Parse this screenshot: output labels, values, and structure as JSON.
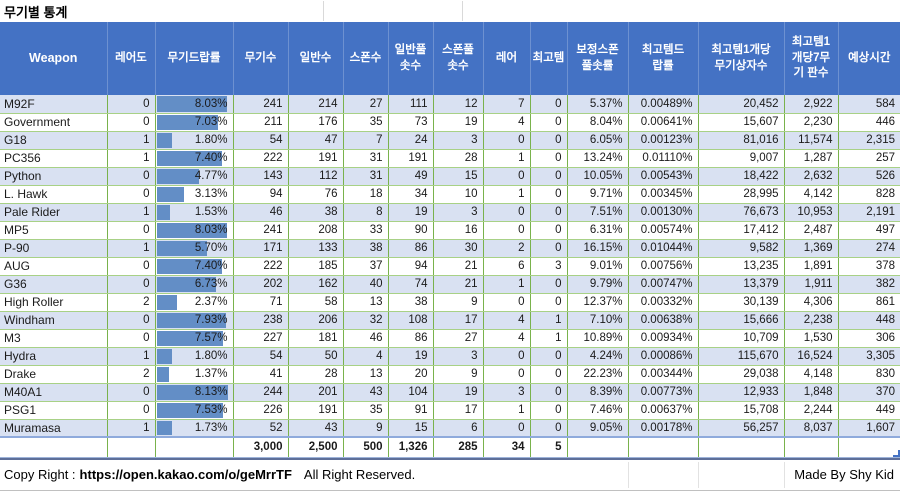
{
  "title": "무기별 통계",
  "colors": {
    "header_bg": "#4472C4",
    "band_row_bg": "#D9E1F2",
    "grid_green": "#79b24c",
    "data_bar_blue": "#638EC6",
    "totals_border_blue": "#8FAADC"
  },
  "table": {
    "headers": [
      "Weapon",
      "레어도",
      "무기드랍률",
      "무기수",
      "일반수",
      "스폰수",
      "일반풀\n솟수",
      "스폰풀\n솟수",
      "레어",
      "최고템",
      "보정스폰\n풀솟률",
      "최고템드\n랍률",
      "최고템1개당\n무기상자수",
      "최고템1\n개당7무\n기 판수",
      "예상시간"
    ],
    "column_keys": [
      "weapon",
      "rarity",
      "drop-rate",
      "weapon-count",
      "normal-count",
      "spawn-count",
      "normal-pool-count",
      "spawn-pool-count",
      "rare-count",
      "top-item-count",
      "adjusted-spawn-pool-rate",
      "top-item-drop-rate",
      "boxes-per-top-item",
      "runs-per-top-item",
      "expected-time"
    ],
    "drop_rate_bar_max": 8.13,
    "rows": [
      [
        "M92F",
        "0",
        "8.03%",
        "241",
        "214",
        "27",
        "111",
        "12",
        "7",
        "0",
        "5.37%",
        "0.00489%",
        "20,452",
        "2,922",
        "584"
      ],
      [
        "Government",
        "0",
        "7.03%",
        "211",
        "176",
        "35",
        "73",
        "19",
        "4",
        "0",
        "8.04%",
        "0.00641%",
        "15,607",
        "2,230",
        "446"
      ],
      [
        "G18",
        "1",
        "1.80%",
        "54",
        "47",
        "7",
        "24",
        "3",
        "0",
        "0",
        "6.05%",
        "0.00123%",
        "81,016",
        "11,574",
        "2,315"
      ],
      [
        "PC356",
        "1",
        "7.40%",
        "222",
        "191",
        "31",
        "191",
        "28",
        "1",
        "0",
        "13.24%",
        "0.01110%",
        "9,007",
        "1,287",
        "257"
      ],
      [
        "Python",
        "0",
        "4.77%",
        "143",
        "112",
        "31",
        "49",
        "15",
        "0",
        "0",
        "10.05%",
        "0.00543%",
        "18,422",
        "2,632",
        "526"
      ],
      [
        "L. Hawk",
        "0",
        "3.13%",
        "94",
        "76",
        "18",
        "34",
        "10",
        "1",
        "0",
        "9.71%",
        "0.00345%",
        "28,995",
        "4,142",
        "828"
      ],
      [
        "Pale Rider",
        "1",
        "1.53%",
        "46",
        "38",
        "8",
        "19",
        "3",
        "0",
        "0",
        "7.51%",
        "0.00130%",
        "76,673",
        "10,953",
        "2,191"
      ],
      [
        "MP5",
        "0",
        "8.03%",
        "241",
        "208",
        "33",
        "90",
        "16",
        "0",
        "0",
        "6.31%",
        "0.00574%",
        "17,412",
        "2,487",
        "497"
      ],
      [
        "P-90",
        "1",
        "5.70%",
        "171",
        "133",
        "38",
        "86",
        "30",
        "2",
        "0",
        "16.15%",
        "0.01044%",
        "9,582",
        "1,369",
        "274"
      ],
      [
        "AUG",
        "0",
        "7.40%",
        "222",
        "185",
        "37",
        "94",
        "21",
        "6",
        "3",
        "9.01%",
        "0.00756%",
        "13,235",
        "1,891",
        "378"
      ],
      [
        "G36",
        "0",
        "6.73%",
        "202",
        "162",
        "40",
        "74",
        "21",
        "1",
        "0",
        "9.79%",
        "0.00747%",
        "13,379",
        "1,911",
        "382"
      ],
      [
        "High Roller",
        "2",
        "2.37%",
        "71",
        "58",
        "13",
        "38",
        "9",
        "0",
        "0",
        "12.37%",
        "0.00332%",
        "30,139",
        "4,306",
        "861"
      ],
      [
        "Windham",
        "0",
        "7.93%",
        "238",
        "206",
        "32",
        "108",
        "17",
        "4",
        "1",
        "7.10%",
        "0.00638%",
        "15,666",
        "2,238",
        "448"
      ],
      [
        "M3",
        "0",
        "7.57%",
        "227",
        "181",
        "46",
        "86",
        "27",
        "4",
        "1",
        "10.89%",
        "0.00934%",
        "10,709",
        "1,530",
        "306"
      ],
      [
        "Hydra",
        "1",
        "1.80%",
        "54",
        "50",
        "4",
        "19",
        "3",
        "0",
        "0",
        "4.24%",
        "0.00086%",
        "115,670",
        "16,524",
        "3,305"
      ],
      [
        "Drake",
        "2",
        "1.37%",
        "41",
        "28",
        "13",
        "20",
        "9",
        "0",
        "0",
        "22.23%",
        "0.00344%",
        "29,038",
        "4,148",
        "830"
      ],
      [
        "M40A1",
        "0",
        "8.13%",
        "244",
        "201",
        "43",
        "104",
        "19",
        "3",
        "0",
        "8.39%",
        "0.00773%",
        "12,933",
        "1,848",
        "370"
      ],
      [
        "PSG1",
        "0",
        "7.53%",
        "226",
        "191",
        "35",
        "91",
        "17",
        "1",
        "0",
        "7.46%",
        "0.00637%",
        "15,708",
        "2,244",
        "449"
      ],
      [
        "Muramasa",
        "1",
        "1.73%",
        "52",
        "43",
        "9",
        "15",
        "6",
        "0",
        "0",
        "9.05%",
        "0.00178%",
        "56,257",
        "8,037",
        "1,607"
      ]
    ],
    "totals": [
      "",
      "",
      "",
      "3,000",
      "2,500",
      "500",
      "1,326",
      "285",
      "34",
      "5",
      "",
      "",
      "",
      "",
      ""
    ]
  },
  "footer": {
    "copyright_prefix": "Copy Right :",
    "copyright_link": "https://open.kakao.com/o/geMrrTF",
    "copyright_suffix": "All Right Reserved.",
    "credit": "Made By Shy Kid"
  }
}
